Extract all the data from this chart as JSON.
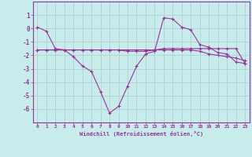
{
  "xlabel": "Windchill (Refroidissement éolien,°C)",
  "bg_color": "#c8ecec",
  "line_color": "#993399",
  "grid_color": "#aacccc",
  "x": [
    0,
    1,
    2,
    3,
    4,
    5,
    6,
    7,
    8,
    9,
    10,
    11,
    12,
    13,
    14,
    15,
    16,
    17,
    18,
    19,
    20,
    21,
    22,
    23
  ],
  "line1": [
    0.1,
    -0.2,
    -1.5,
    -1.6,
    -2.1,
    -2.8,
    -3.2,
    -4.7,
    -6.3,
    -5.8,
    -4.3,
    -2.8,
    -1.9,
    -1.7,
    0.8,
    0.7,
    0.1,
    -0.1,
    -1.2,
    -1.4,
    -1.8,
    -1.9,
    -2.5,
    -2.6
  ],
  "line2": [
    -1.6,
    -1.6,
    -1.6,
    -1.6,
    -1.6,
    -1.6,
    -1.6,
    -1.6,
    -1.6,
    -1.6,
    -1.6,
    -1.6,
    -1.6,
    -1.6,
    -1.5,
    -1.5,
    -1.5,
    -1.5,
    -1.5,
    -1.5,
    -1.5,
    -1.5,
    -1.5,
    -2.6
  ],
  "line3": [
    -1.6,
    -1.6,
    -1.6,
    -1.6,
    -1.6,
    -1.6,
    -1.6,
    -1.6,
    -1.6,
    -1.6,
    -1.7,
    -1.7,
    -1.7,
    -1.6,
    -1.6,
    -1.6,
    -1.6,
    -1.6,
    -1.7,
    -1.9,
    -2.0,
    -2.1,
    -2.2,
    -2.4
  ],
  "ylim": [
    -7,
    2
  ],
  "yticks": [
    1,
    0,
    -1,
    -2,
    -3,
    -4,
    -5,
    -6
  ],
  "xticks": [
    0,
    1,
    2,
    3,
    4,
    5,
    6,
    7,
    8,
    9,
    10,
    11,
    12,
    13,
    14,
    15,
    16,
    17,
    18,
    19,
    20,
    21,
    22,
    23
  ],
  "marker": "+"
}
